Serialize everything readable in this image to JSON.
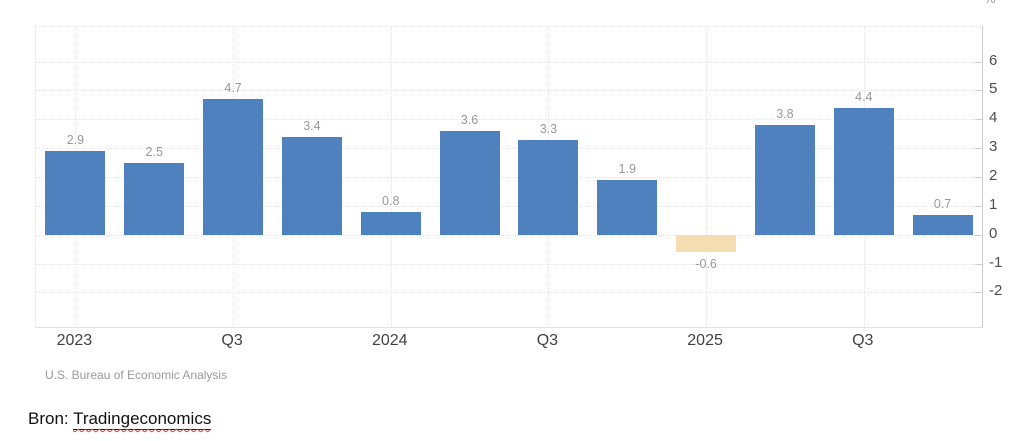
{
  "page": {
    "source_prefix": "Bron: ",
    "source_link_text": "Tradingeconomics"
  },
  "chart_data": {
    "type": "bar",
    "title": "",
    "attribution": "U.S. Bureau of Economic Analysis",
    "values": [
      2.9,
      2.5,
      4.7,
      3.4,
      0.8,
      3.6,
      3.3,
      1.9,
      -0.6,
      3.8,
      4.4,
      0.7
    ],
    "x_ticks": [
      {
        "bar_index": 0,
        "label": "2023"
      },
      {
        "bar_index": 2,
        "label": "Q3"
      },
      {
        "bar_index": 4,
        "label": "2024"
      },
      {
        "bar_index": 6,
        "label": "Q3"
      },
      {
        "bar_index": 8,
        "label": "2025"
      },
      {
        "bar_index": 10,
        "label": "Q3"
      }
    ],
    "y_ticks": [
      6,
      5,
      4,
      3,
      2,
      1,
      0,
      -1,
      -2
    ],
    "ylim": [
      -3.2,
      7.2
    ],
    "y_axis_unit": "%",
    "grid": true,
    "legend_position": "none",
    "colors": {
      "positive_bar": "#4e81bd",
      "negative_bar": "#f3ddb1",
      "value_label": "#999999",
      "y_axis_label": "#4d4d4d",
      "x_axis_label": "#424242",
      "gridline": "#e4e4e4",
      "axis_line": "#cccccc",
      "attribution": "#9a9a9a",
      "wavy_underline": "#d63a2e"
    }
  }
}
